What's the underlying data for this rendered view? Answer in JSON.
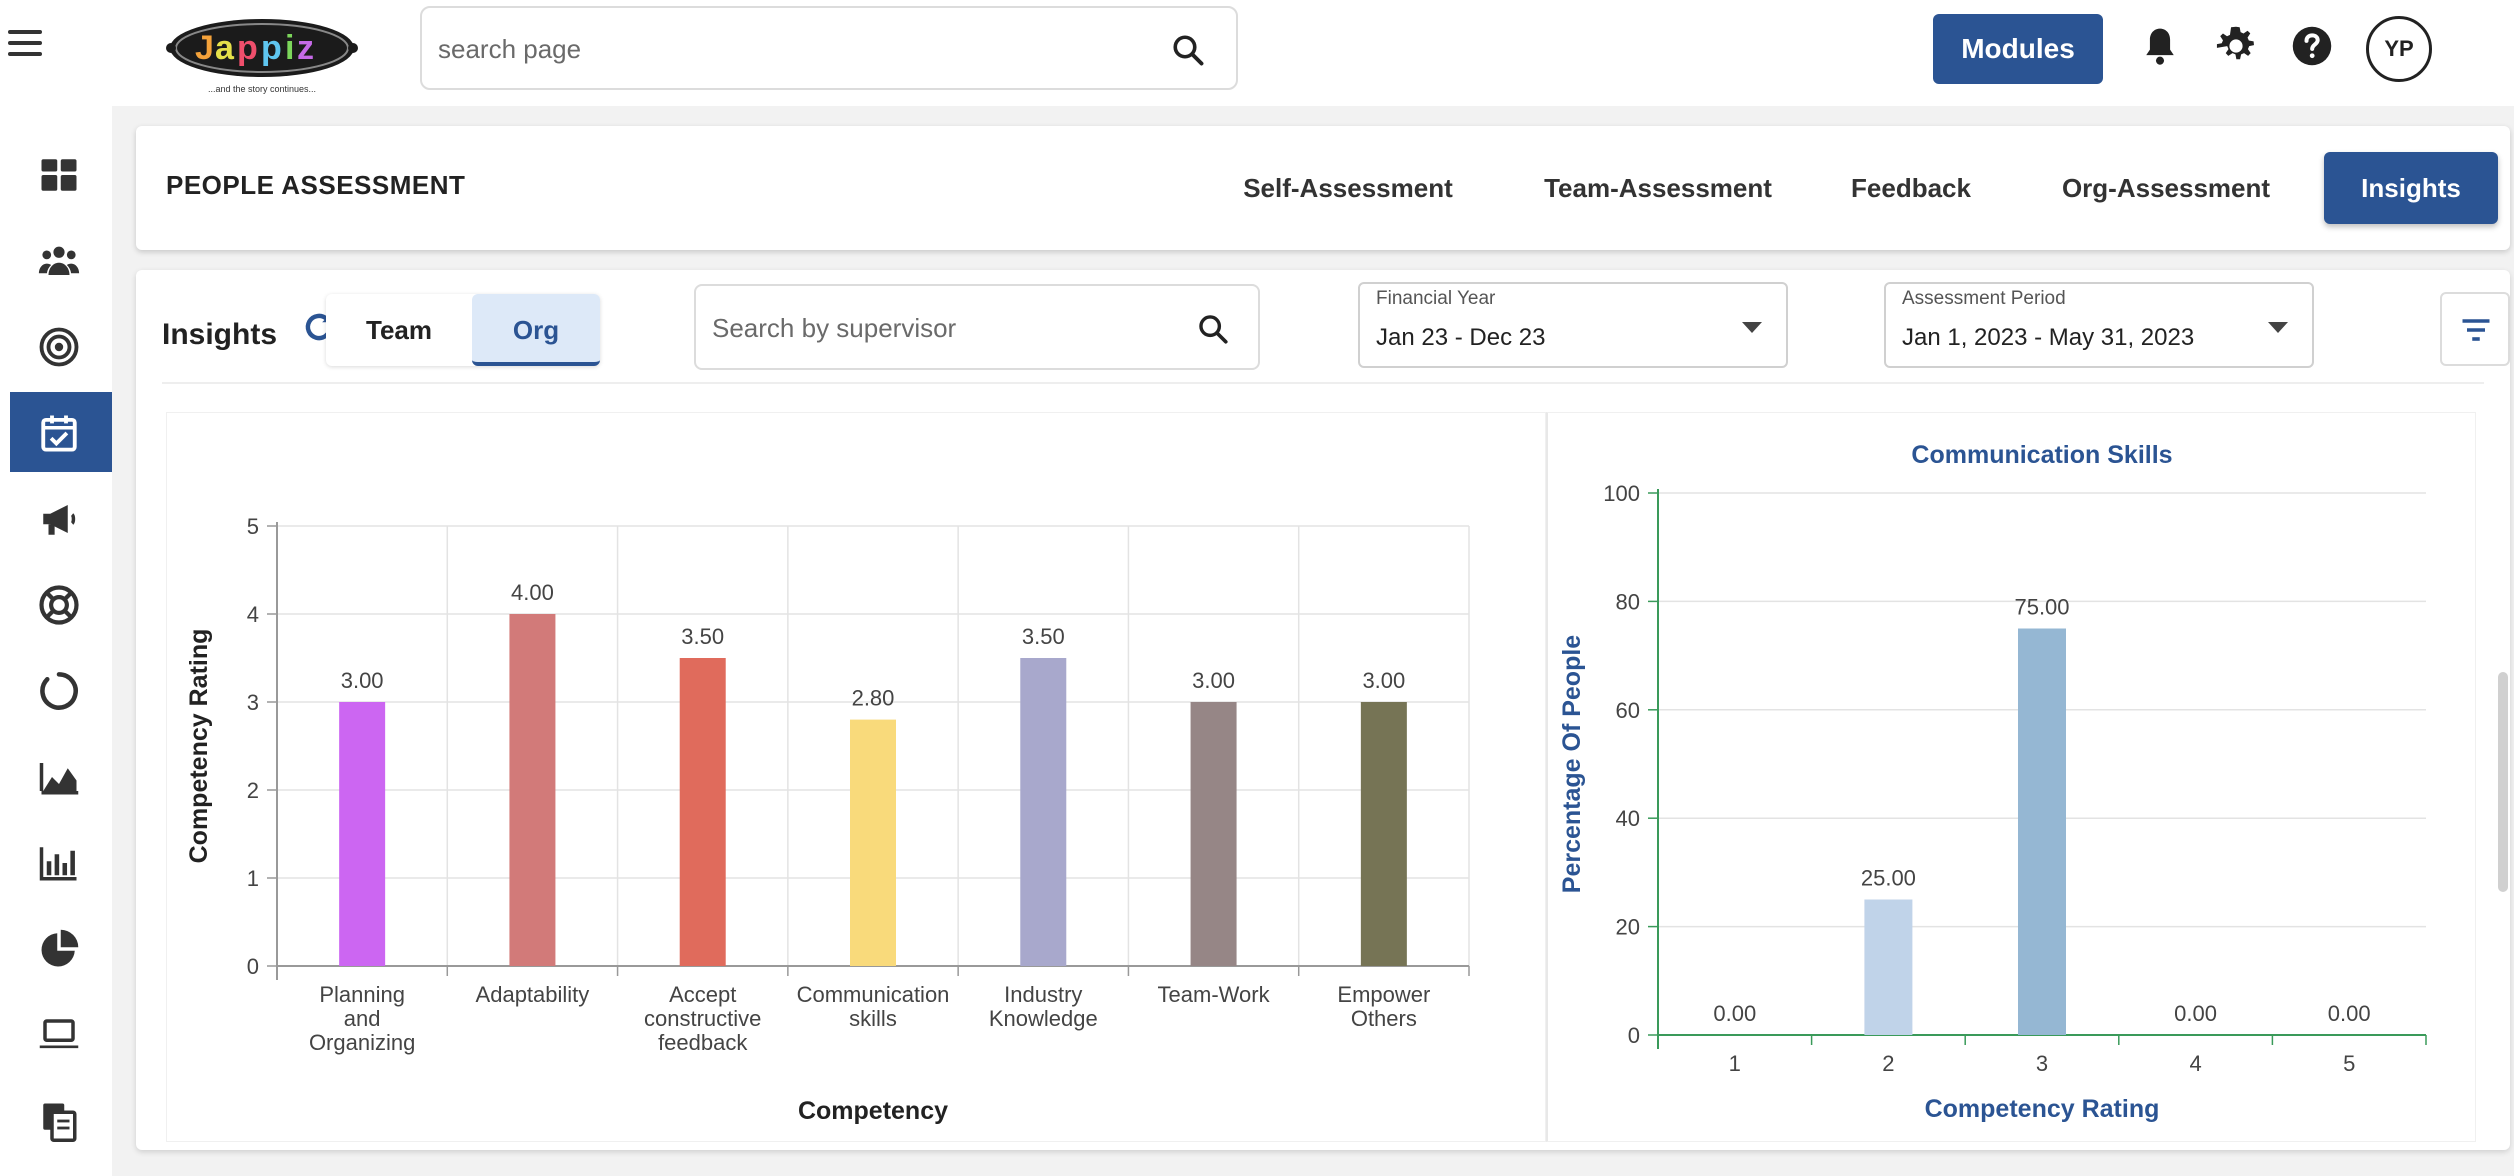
{
  "app": {
    "logo_text": "Jappiz",
    "logo_tagline": "...and the story continues..."
  },
  "topbar": {
    "search_placeholder": "search page",
    "modules_label": "Modules",
    "avatar_initials": "YP",
    "icons": [
      "hamburger-menu-icon",
      "search-icon",
      "bell-icon",
      "gear-icon",
      "help-icon"
    ]
  },
  "sidebar": {
    "items": [
      {
        "icon": "dashboard-icon",
        "active": false
      },
      {
        "icon": "people-group-icon",
        "active": false
      },
      {
        "icon": "target-icon",
        "active": false
      },
      {
        "icon": "calendar-check-icon",
        "active": true
      },
      {
        "icon": "megaphone-icon",
        "active": false
      },
      {
        "icon": "lifebuoy-icon",
        "active": false
      },
      {
        "icon": "circle-loader-icon",
        "active": false
      },
      {
        "icon": "area-chart-icon",
        "active": false
      },
      {
        "icon": "bar-chart-icon",
        "active": false
      },
      {
        "icon": "pie-chart-icon",
        "active": false
      },
      {
        "icon": "laptop-icon",
        "active": false
      },
      {
        "icon": "documents-icon",
        "active": false
      }
    ]
  },
  "header": {
    "title": "PEOPLE ASSESSMENT",
    "tabs": [
      {
        "label": "Self-Assessment",
        "active": false
      },
      {
        "label": "Team-Assessment",
        "active": false
      },
      {
        "label": "Feedback",
        "active": false
      },
      {
        "label": "Org-Assessment",
        "active": false
      },
      {
        "label": "Insights",
        "active": true
      }
    ]
  },
  "insights": {
    "title": "Insights",
    "toggle": [
      {
        "label": "Team",
        "selected": false
      },
      {
        "label": "Org",
        "selected": true
      }
    ],
    "supervisor_search_placeholder": "Search by supervisor",
    "financial_year": {
      "label": "Financial Year",
      "value": "Jan 23 - Dec 23"
    },
    "assessment_period": {
      "label": "Assessment Period",
      "value": "Jan 1, 2023 - May 31, 2023"
    }
  },
  "colors": {
    "primary": "#2b5493",
    "chart_title": "#2b5493",
    "axis_green": "#3a9a5a"
  },
  "chart_data": [
    {
      "type": "bar",
      "title": "",
      "xlabel": "Competency",
      "ylabel": "Competency Rating",
      "ylim": [
        0,
        5
      ],
      "yticks": [
        0,
        1,
        2,
        3,
        4,
        5
      ],
      "grid": true,
      "categories": [
        [
          "Planning",
          "and",
          "Organizing"
        ],
        [
          "Adaptability"
        ],
        [
          "Accept",
          "constructive",
          "feedback"
        ],
        [
          "Communication",
          "skills"
        ],
        [
          "Industry",
          "Knowledge"
        ],
        [
          "Team-Work"
        ],
        [
          "Empower",
          "Others"
        ]
      ],
      "values": [
        3.0,
        4.0,
        3.5,
        2.8,
        3.5,
        3.0,
        3.0
      ],
      "value_labels": [
        "3.00",
        "4.00",
        "3.50",
        "2.80",
        "3.50",
        "3.00",
        "3.00"
      ],
      "bar_colors": [
        "#cc66f2",
        "#d27a79",
        "#e06b5c",
        "#f9da7b",
        "#a8a8cc",
        "#968686",
        "#767455"
      ]
    },
    {
      "type": "bar",
      "title": "Communication Skills",
      "xlabel": "Competency Rating",
      "ylabel": "Percentage Of People",
      "ylim": [
        0,
        100
      ],
      "yticks": [
        0,
        20,
        40,
        60,
        80,
        100
      ],
      "grid": true,
      "categories": [
        "1",
        "2",
        "3",
        "4",
        "5"
      ],
      "values": [
        0,
        25,
        75,
        0,
        0
      ],
      "value_labels": [
        "0.00",
        "25.00",
        "75.00",
        "0.00",
        "0.00"
      ],
      "bar_colors": [
        "#c0d3e9",
        "#c0d3e9",
        "#95b7d3",
        "#c0d3e9",
        "#c0d3e9"
      ]
    }
  ]
}
